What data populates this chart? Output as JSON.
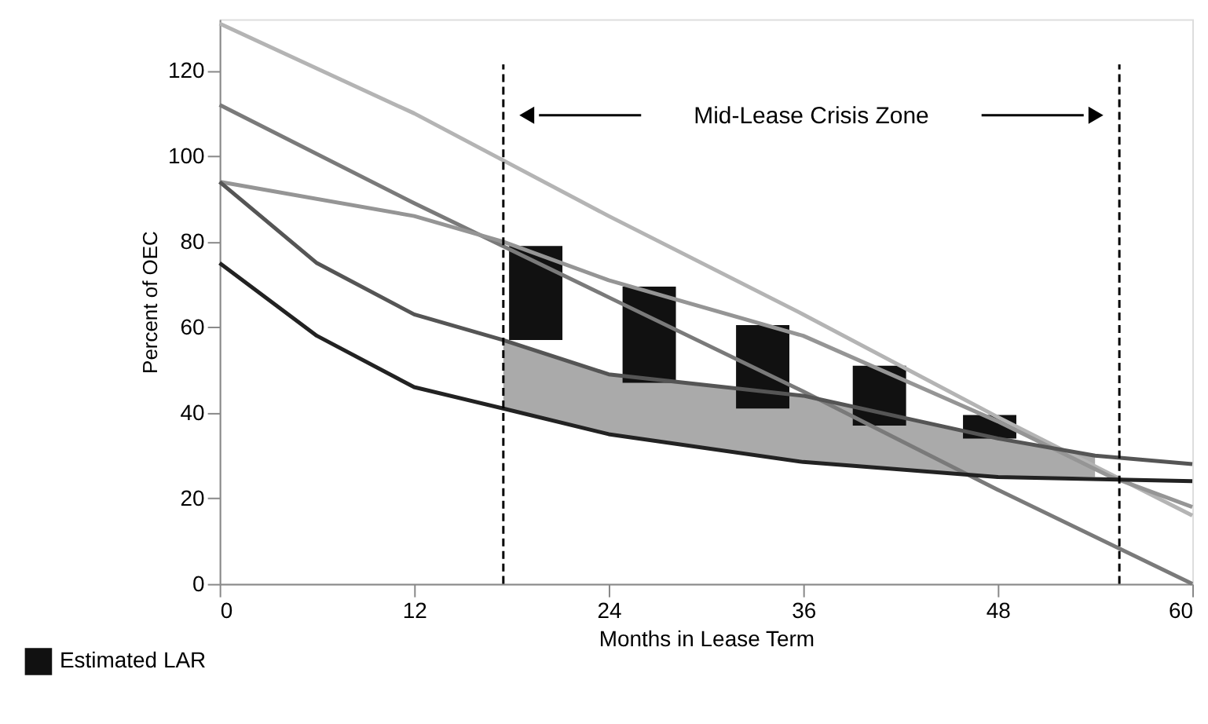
{
  "chart_data": {
    "type": "line",
    "xlabel": "Months in Lease Term",
    "ylabel": "Percent of OEC",
    "xlim": [
      0,
      60
    ],
    "ylim": [
      0,
      132
    ],
    "xticks": [
      0,
      12,
      24,
      36,
      48,
      60
    ],
    "yticks": [
      0,
      20,
      40,
      60,
      80,
      100,
      120
    ],
    "grid": false,
    "legend": "bottom left",
    "line_style": "solid",
    "marker": "none",
    "series": [
      {
        "type": "bar",
        "name": "Estimated LAR",
        "color": "#111111",
        "x": [
          19.5,
          26.5,
          33.5,
          40.7,
          47.5
        ],
        "base": [
          57,
          47,
          41,
          37,
          34
        ],
        "values": [
          22,
          22.5,
          19.5,
          14,
          5.5
        ]
      },
      {
        "color": "#b4b4b4",
        "x": [
          0,
          12,
          24,
          36,
          48,
          60
        ],
        "values": [
          131,
          110,
          86,
          63,
          39,
          16
        ]
      },
      {
        "color": "#7a7a7a",
        "x": [
          0,
          12,
          24,
          36,
          48,
          60
        ],
        "values": [
          112,
          89,
          67,
          45,
          22,
          0
        ]
      },
      {
        "color": "#959595",
        "x": [
          0,
          12,
          17.5,
          24,
          36,
          48,
          55,
          60
        ],
        "values": [
          94,
          86,
          80,
          71,
          58,
          38,
          25,
          18
        ]
      },
      {
        "color": "#555555",
        "x": [
          0,
          6,
          12,
          17.5,
          24,
          36,
          48,
          54,
          60
        ],
        "values": [
          94,
          75,
          63,
          57,
          49,
          44,
          34,
          30,
          28
        ],
        "upper": [
          null,
          null,
          null,
          57,
          49,
          44,
          34,
          30,
          null
        ],
        "lower": [
          null,
          null,
          null,
          41,
          35,
          28.5,
          25,
          25,
          null
        ]
      },
      {
        "color": "#222222",
        "x": [
          0,
          6,
          12,
          17.5,
          24,
          36,
          48,
          60
        ],
        "values": [
          75,
          58,
          46,
          41,
          35,
          28.5,
          25,
          24
        ]
      }
    ],
    "ref_lines": [
      {
        "axis": "x",
        "value": 17.5,
        "color": "#000000",
        "line_style": "dashed"
      },
      {
        "axis": "x",
        "value": 55.5,
        "color": "#000000",
        "line_style": "dashed"
      }
    ],
    "annotations": [
      "Mid-Lease Crisis Zone"
    ]
  }
}
